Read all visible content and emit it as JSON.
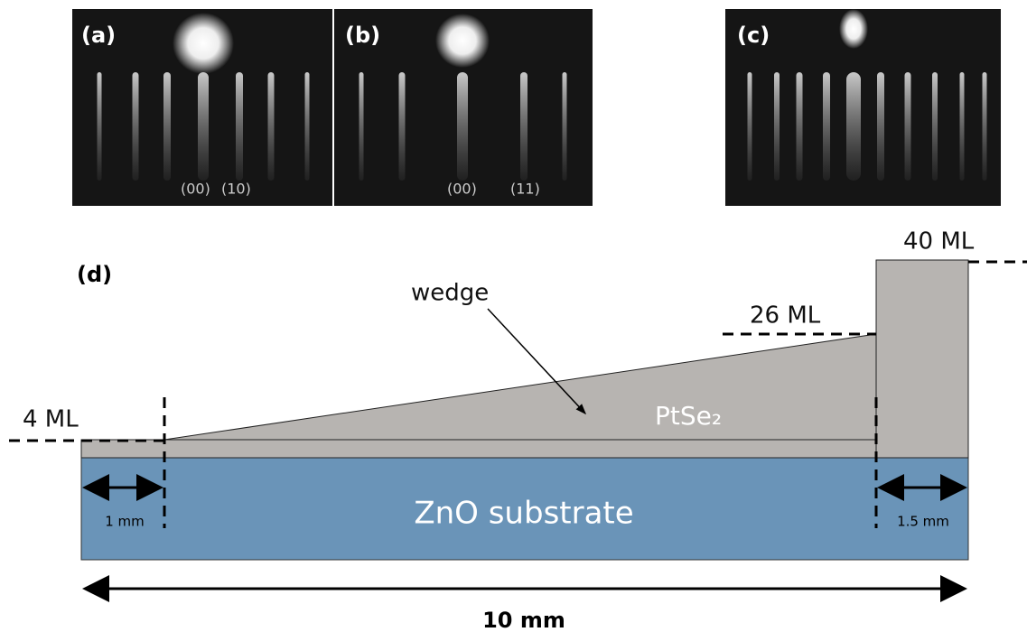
{
  "panels": [
    {
      "label": "(a)",
      "indices": [
        "(00)",
        "(10)"
      ]
    },
    {
      "label": "(b)",
      "indices": [
        "(00)",
        "(11)"
      ]
    },
    {
      "label": "(c)"
    }
  ],
  "diagram": {
    "label": "(d)",
    "wedge": "wedge",
    "thick_26": "26 ML",
    "thick_40": "40 ML",
    "thick_4": "4 ML",
    "film": "PtSe₂",
    "substrate": "ZnO substrate",
    "left_width": "1 mm",
    "right_width": "1.5 mm",
    "total_width": "10 mm"
  }
}
